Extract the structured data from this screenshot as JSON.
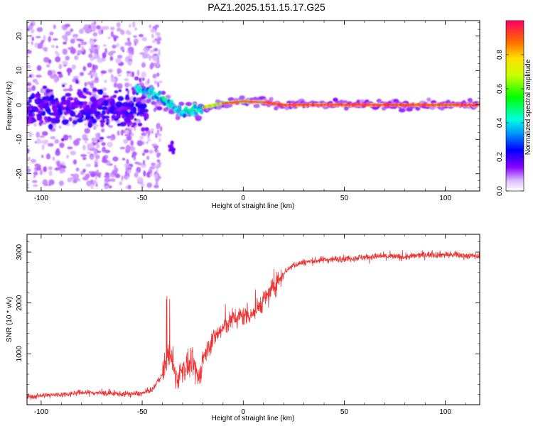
{
  "title": "PAZ1.2025.151.15.17.G25",
  "colors": {
    "snr_line": "#ee3333",
    "frame": "#000000"
  },
  "chart_data": [
    {
      "type": "heatmap",
      "xlabel": "Height of straight line (km)",
      "ylabel": "Frequency (Hz)",
      "xlim": [
        -107,
        117
      ],
      "ylim": [
        -25,
        24.5
      ],
      "x_ticks": [
        -100,
        -50,
        0,
        50,
        100
      ],
      "y_ticks": [
        -20,
        -10,
        0,
        10,
        20
      ],
      "grid": false,
      "colormap": "rainbow (magenta to red)",
      "colorbar": {
        "label": "Normalized spectral amplitude",
        "range": [
          0,
          1
        ],
        "ticks": [
          0.0,
          0.2,
          0.4,
          0.6,
          0.8
        ]
      },
      "ridge": [
        {
          "x": -52,
          "y": 5.0
        },
        {
          "x": -48,
          "y": 4.0
        },
        {
          "x": -44,
          "y": 3.0
        },
        {
          "x": -40,
          "y": 2.0
        },
        {
          "x": -36,
          "y": 0.5
        },
        {
          "x": -32,
          "y": -1.5
        },
        {
          "x": -28,
          "y": -2.0
        },
        {
          "x": -24,
          "y": -1.5
        },
        {
          "x": -18,
          "y": -0.5
        },
        {
          "x": -10,
          "y": 0.5
        },
        {
          "x": 0,
          "y": 1.0
        },
        {
          "x": 10,
          "y": 0.8
        },
        {
          "x": 20,
          "y": 0.0
        },
        {
          "x": 117,
          "y": 0.0
        }
      ]
    },
    {
      "type": "line",
      "xlabel": "Height of straight line (km)",
      "ylabel": "SNR (10 * v/v)",
      "xlim": [
        -107,
        117
      ],
      "ylim": [
        0,
        3350
      ],
      "x_ticks": [
        -100,
        -50,
        0,
        50,
        100
      ],
      "y_ticks": [
        1000,
        2000,
        3000
      ],
      "grid": false,
      "series": [
        {
          "x": [
            -107,
            -100,
            -90,
            -80,
            -70,
            -60,
            -50,
            -45,
            -40,
            -37,
            -35,
            -33,
            -30,
            -25,
            -22,
            -20,
            -15,
            -10,
            -5,
            0,
            5,
            10,
            15,
            20,
            25,
            30,
            40,
            50,
            60,
            70,
            80,
            90,
            100,
            110,
            117
          ],
          "values": [
            150,
            180,
            200,
            240,
            230,
            210,
            220,
            300,
            600,
            1000,
            800,
            500,
            700,
            800,
            500,
            900,
            1300,
            1500,
            1700,
            1750,
            1800,
            2050,
            2300,
            2600,
            2750,
            2800,
            2850,
            2870,
            2900,
            2920,
            2900,
            2950,
            2950,
            2930,
            2920
          ]
        }
      ]
    }
  ]
}
